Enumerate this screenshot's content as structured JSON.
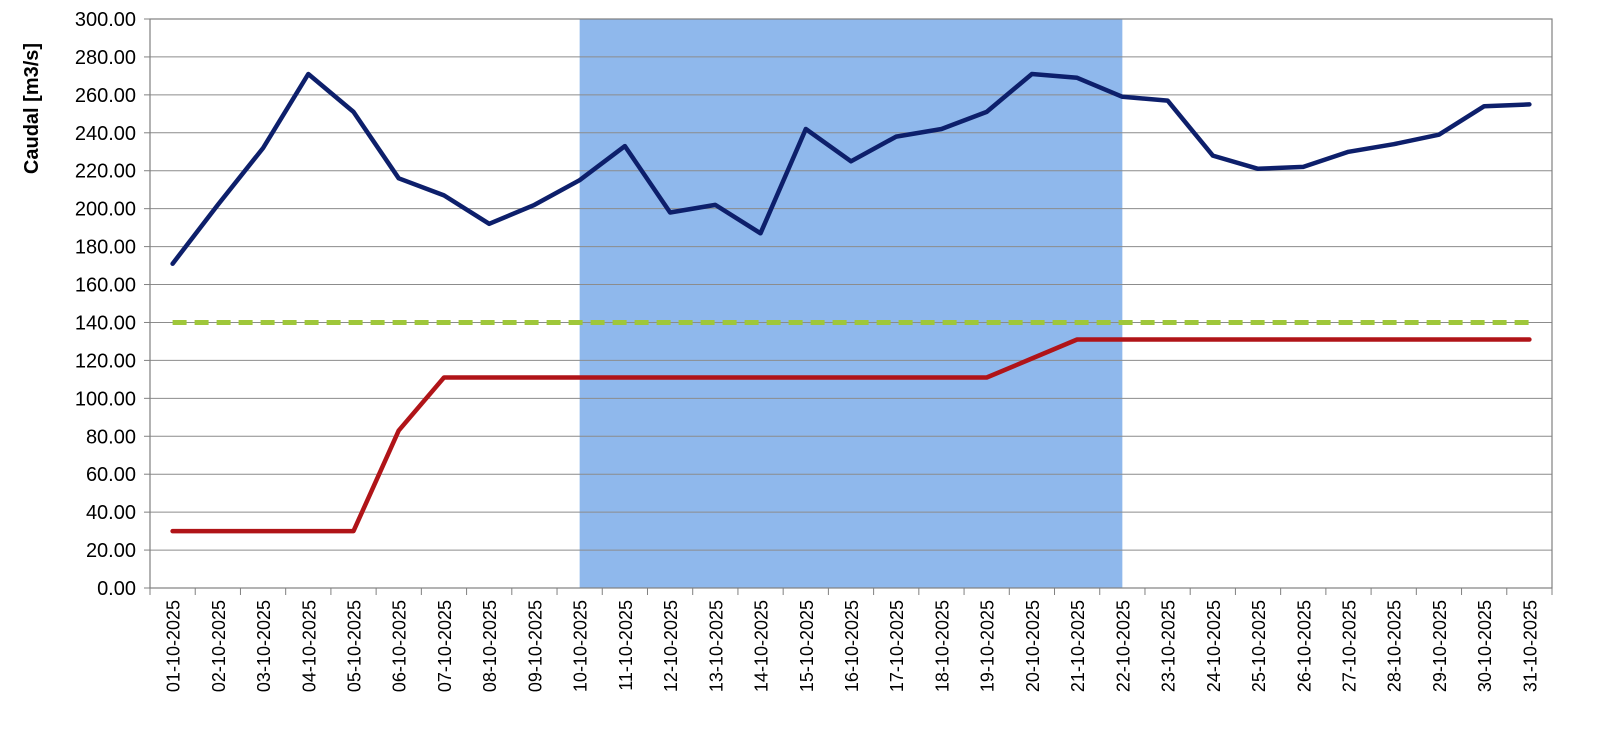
{
  "chart_data": {
    "type": "line",
    "title": "",
    "xlabel": "",
    "ylabel": "Caudal [m3/s]",
    "ylim": [
      0,
      300
    ],
    "y_tick_step": 20,
    "y_tick_labels": [
      "0.00",
      "20.00",
      "40.00",
      "60.00",
      "80.00",
      "100.00",
      "120.00",
      "140.00",
      "160.00",
      "180.00",
      "200.00",
      "220.00",
      "240.00",
      "260.00",
      "280.00",
      "300.00"
    ],
    "grid": true,
    "legend": "none",
    "x": [
      "01-10-2025",
      "02-10-2025",
      "03-10-2025",
      "04-10-2025",
      "05-10-2025",
      "06-10-2025",
      "07-10-2025",
      "08-10-2025",
      "09-10-2025",
      "10-10-2025",
      "11-10-2025",
      "12-10-2025",
      "13-10-2025",
      "14-10-2025",
      "15-10-2025",
      "16-10-2025",
      "17-10-2025",
      "18-10-2025",
      "19-10-2025",
      "20-10-2025",
      "21-10-2025",
      "22-10-2025",
      "23-10-2025",
      "24-10-2025",
      "25-10-2025",
      "26-10-2025",
      "27-10-2025",
      "28-10-2025",
      "29-10-2025",
      "30-10-2025",
      "31-10-2025"
    ],
    "highlight_range": {
      "from": "10-10-2025",
      "to": "22-10-2025",
      "color": "#8fb8ec"
    },
    "series": [
      {
        "color": "#0d1f6b",
        "style": "solid",
        "values": [
          171,
          202,
          232,
          271,
          251,
          216,
          207,
          192,
          202,
          215,
          233,
          198,
          202,
          187,
          242,
          225,
          238,
          242,
          251,
          271,
          269,
          259,
          257,
          228,
          221,
          222,
          230,
          234,
          239,
          254,
          255
        ]
      },
      {
        "color": "#b01418",
        "style": "solid",
        "values": [
          30,
          30,
          30,
          30,
          30,
          83,
          111,
          111,
          111,
          111,
          111,
          111,
          111,
          111,
          111,
          111,
          111,
          111,
          111,
          121,
          131,
          131,
          131,
          131,
          131,
          131,
          131,
          131,
          131,
          131,
          131
        ]
      },
      {
        "color": "#9fc73a",
        "style": "dashed",
        "values": [
          140,
          140,
          140,
          140,
          140,
          140,
          140,
          140,
          140,
          140,
          140,
          140,
          140,
          140,
          140,
          140,
          140,
          140,
          140,
          140,
          140,
          140,
          140,
          140,
          140,
          140,
          140,
          140,
          140,
          140,
          140
        ]
      }
    ]
  }
}
